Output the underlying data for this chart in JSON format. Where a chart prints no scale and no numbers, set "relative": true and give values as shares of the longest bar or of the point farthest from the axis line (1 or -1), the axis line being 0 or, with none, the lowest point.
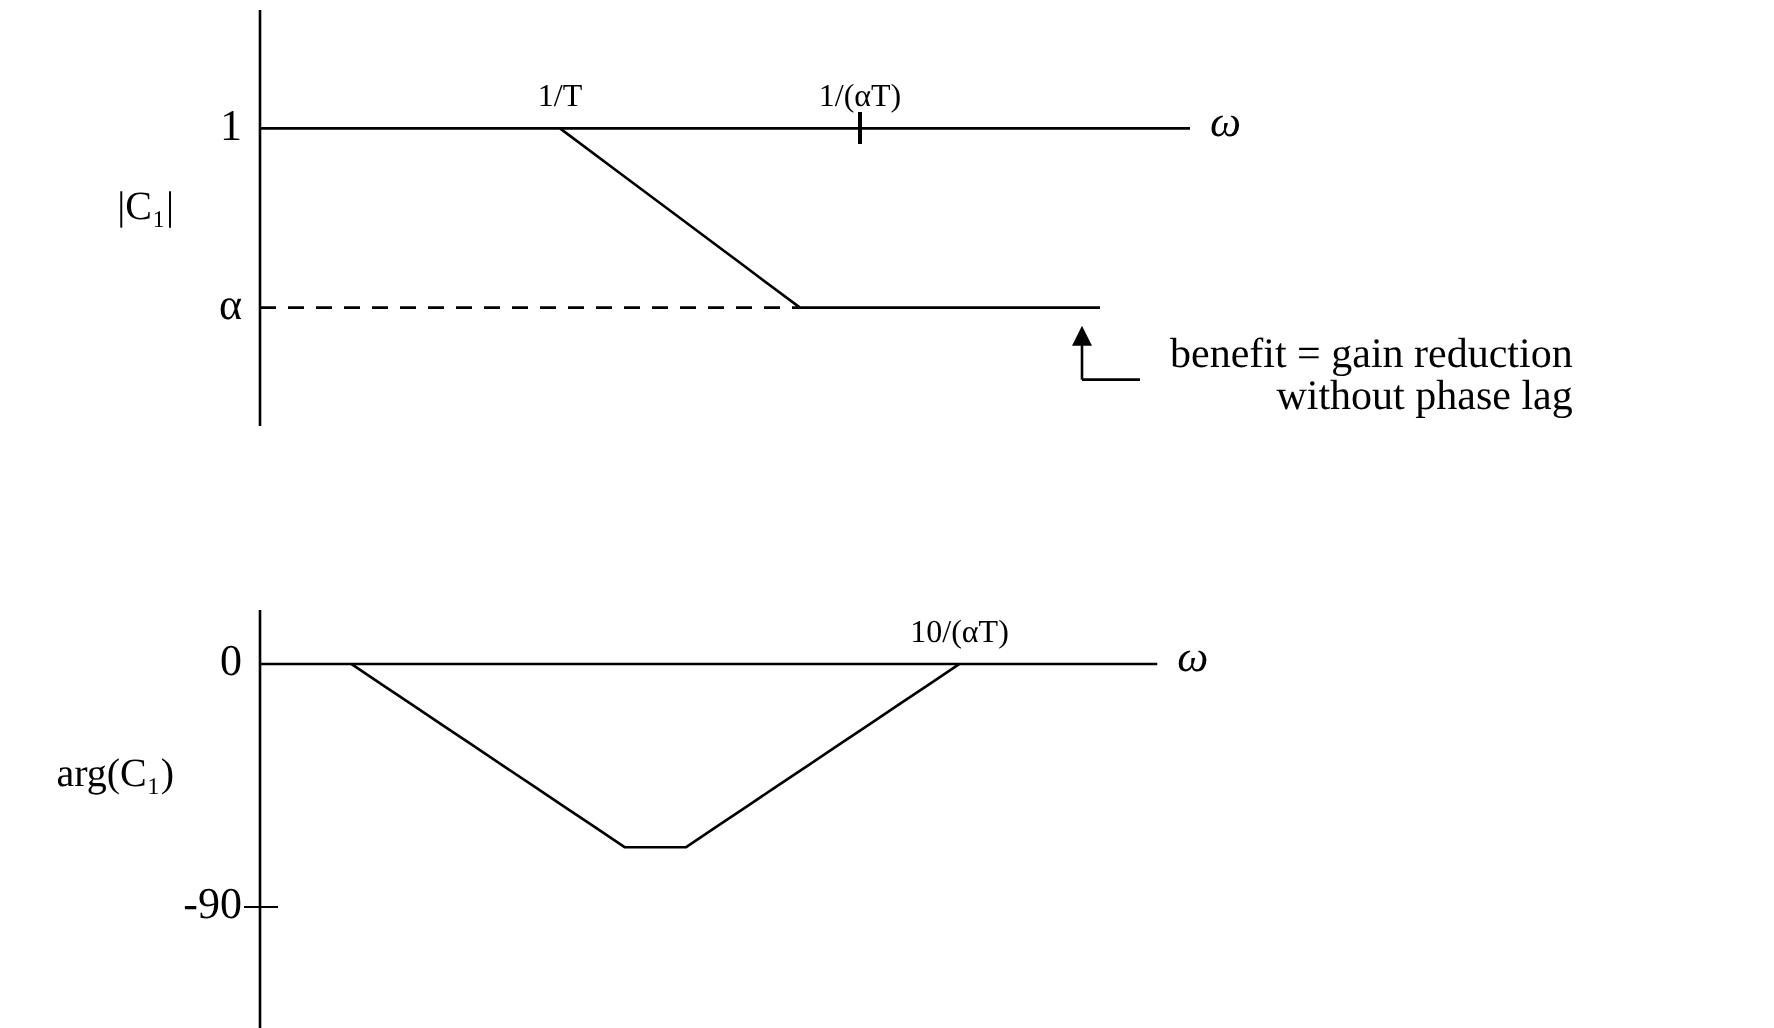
{
  "chart_data": [
    {
      "type": "line",
      "relative": true,
      "xlabel": "ω",
      "ylabel": "|C₁|",
      "marker": "none",
      "line_style": "solid",
      "categories": [
        null,
        null,
        null,
        null,
        null,
        "1/T",
        null,
        null,
        null,
        null,
        "1/(αT)",
        null,
        null,
        null,
        null,
        null
      ],
      "series": [
        {
          "values": [
            null,
            null,
            null,
            null,
            null,
            0,
            -0.25,
            -0.5,
            -0.75,
            -1,
            -1,
            -1,
            -1,
            -1,
            -1,
            null
          ],
          "color": "#000000"
        },
        {
          "values": [
            -1,
            -1,
            -1,
            -1,
            -1,
            -1,
            -1,
            -1,
            -1,
            -1,
            null,
            null,
            null,
            null,
            null,
            null
          ],
          "color": "#000000",
          "line_style": "dashed"
        }
      ],
      "annotations": [
        "1",
        "α",
        "benefit = gain reduction\nwithout phase lag"
      ]
    },
    {
      "type": "line",
      "xlabel": "ω",
      "ylabel": "arg(C₁)",
      "ylim": [
        -135,
        20
      ],
      "yticks": [
        0,
        -90
      ],
      "marker": "none",
      "line_style": "solid",
      "categories": [
        null,
        null,
        null,
        null,
        null,
        null,
        null,
        null,
        null,
        null,
        null,
        null,
        null,
        null,
        null,
        null,
        null,
        null,
        null,
        null,
        null,
        null,
        null,
        "10/(αT)",
        null,
        null,
        null,
        null,
        null,
        null
      ],
      "values": [
        null,
        null,
        null,
        0,
        -7.6,
        -15.1,
        -22.7,
        -30.2,
        -37.8,
        -45.3,
        -52.9,
        -60.4,
        -68,
        -68,
        -68,
        -60.4,
        -52.9,
        -45.3,
        -37.8,
        -30.2,
        -22.7,
        -15.1,
        -7.6,
        0,
        null,
        null,
        null,
        null,
        null,
        null
      ],
      "color": "#000000"
    }
  ]
}
